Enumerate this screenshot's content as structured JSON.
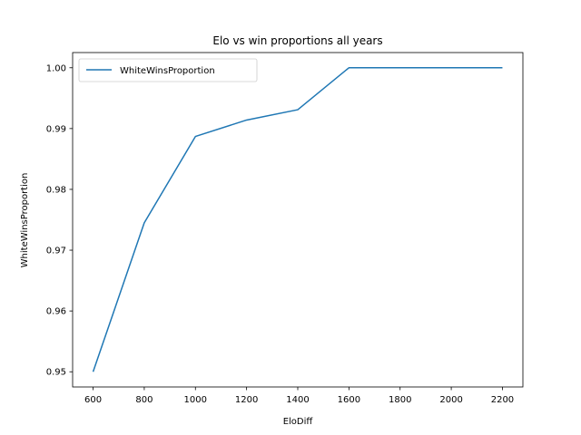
{
  "chart_data": {
    "type": "line",
    "title": "Elo vs win proportions all years",
    "xlabel": "EloDiff",
    "ylabel": "WhiteWinsProportion",
    "x": [
      600,
      800,
      1000,
      1200,
      1400,
      1600,
      1800,
      2000,
      2200
    ],
    "series": [
      {
        "name": "WhiteWinsProportion",
        "values": [
          0.95,
          0.9745,
          0.9887,
          0.9914,
          0.9931,
          1.0,
          1.0,
          1.0,
          1.0
        ],
        "color": "#1f77b4"
      }
    ],
    "xlim": [
      520,
      2280
    ],
    "ylim": [
      0.9475,
      1.0025
    ],
    "x_ticks": [
      600,
      800,
      1000,
      1200,
      1400,
      1600,
      1800,
      2000,
      2200
    ],
    "x_tick_labels": [
      "600",
      "800",
      "1000",
      "1200",
      "1400",
      "1600",
      "1800",
      "2000",
      "2200"
    ],
    "y_ticks": [
      0.95,
      0.96,
      0.97,
      0.98,
      0.99,
      1.0
    ],
    "y_tick_labels": [
      "0.95",
      "0.96",
      "0.97",
      "0.98",
      "0.99",
      "1.00"
    ],
    "grid": false,
    "legend": "top-left"
  }
}
